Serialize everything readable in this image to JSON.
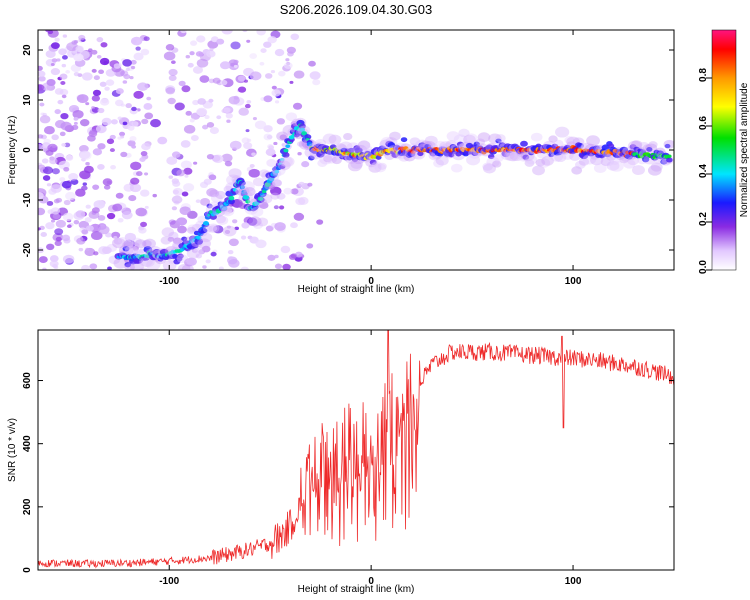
{
  "title": "S206.2026.109.04.30.G03",
  "chart_data": [
    {
      "type": "heatmap",
      "xlabel": "Height of straight line (km)",
      "ylabel": "Frequency (Hz)",
      "xlim": [
        -165,
        150
      ],
      "ylim": [
        -24,
        24
      ],
      "xticks": [
        -100,
        0,
        100
      ],
      "yticks": [
        -20,
        -10,
        0,
        10,
        20
      ],
      "xtick_labels": [
        "-100",
        "0",
        "100"
      ],
      "ytick_labels": [
        "-20",
        "-10",
        "0",
        "10",
        "20"
      ],
      "colorbar": {
        "label": "Normalized spectral amplitude",
        "range": [
          0,
          1
        ],
        "ticks": [
          "0.0",
          "0.2",
          "0.4",
          "0.6",
          "0.8"
        ]
      },
      "ridge": {
        "x": [
          -120,
          -110,
          -100,
          -95,
          -90,
          -85,
          -80,
          -75,
          -70,
          -65,
          -60,
          -55,
          -50,
          -45,
          -40,
          -35,
          -30,
          -25,
          -20,
          -15,
          -10,
          -5,
          0,
          5,
          10,
          20,
          40,
          60,
          80,
          100,
          120,
          150
        ],
        "y": [
          -21.5,
          -21,
          -21,
          -20,
          -19,
          -17,
          -13,
          -12,
          -10,
          -6,
          -12,
          -10,
          -6,
          -3,
          2,
          5,
          0.5,
          0,
          0,
          -0.5,
          -1,
          -1,
          -1.5,
          -0.5,
          0,
          0,
          0,
          0,
          0,
          0,
          -0.5,
          -1.5
        ]
      }
    },
    {
      "type": "line",
      "xlabel": "Height of straight line (km)",
      "ylabel": "SNR (10 * v/v)",
      "xlim": [
        -165,
        150
      ],
      "ylim": [
        0,
        760
      ],
      "xticks": [
        -100,
        0,
        100
      ],
      "yticks": [
        0,
        200,
        400,
        600
      ],
      "xtick_labels": [
        "-100",
        "0",
        "100"
      ],
      "ytick_labels": [
        "0",
        "200",
        "400",
        "600"
      ],
      "series": [
        {
          "name": "SNR",
          "color": "#ee2a2a",
          "x": [
            -165,
            -140,
            -120,
            -100,
            -80,
            -70,
            -60,
            -50,
            -45,
            -40,
            -35,
            -30,
            -25,
            -20,
            -15,
            -10,
            -5,
            0,
            5,
            10,
            15,
            20,
            25,
            30,
            40,
            50,
            60,
            70,
            80,
            90,
            100,
            110,
            120,
            130,
            140,
            150
          ],
          "y": [
            22,
            20,
            22,
            28,
            38,
            50,
            65,
            85,
            105,
            140,
            210,
            300,
            330,
            350,
            370,
            390,
            380,
            410,
            430,
            470,
            530,
            560,
            600,
            650,
            690,
            690,
            690,
            685,
            680,
            675,
            670,
            665,
            655,
            645,
            630,
            610
          ]
        }
      ]
    }
  ]
}
